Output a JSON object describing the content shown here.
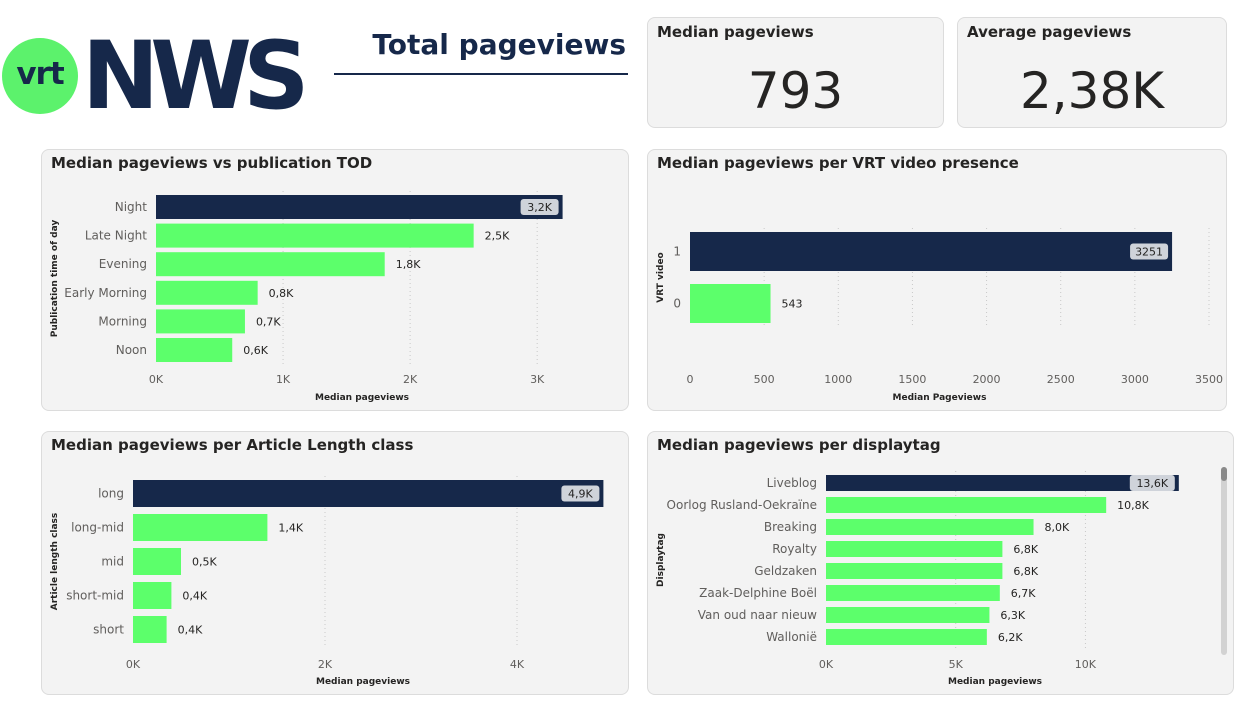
{
  "logo": {
    "vrt": "vrt",
    "nws": "NWS"
  },
  "page_title": "Total pageviews",
  "kpis": [
    {
      "label": "Median pageviews",
      "value": "793"
    },
    {
      "label": "Average pageviews",
      "value": "2,38K"
    }
  ],
  "colors": {
    "navy": "#16284a",
    "green": "#5cff6b",
    "label_box": "#cfd3da"
  },
  "chart_data": [
    {
      "type": "bar",
      "orientation": "horizontal",
      "title": "Median pageviews vs publication TOD",
      "xlabel": "Median pageviews",
      "ylabel": "Publication time of day",
      "categories": [
        "Night",
        "Late Night",
        "Evening",
        "Early Morning",
        "Morning",
        "Noon"
      ],
      "values": [
        3200,
        2500,
        1800,
        800,
        700,
        600
      ],
      "data_labels": [
        "3,2K",
        "2,5K",
        "1,8K",
        "0,8K",
        "0,7K",
        "0,6K"
      ],
      "highlight_index": 0,
      "xlim": [
        0,
        3400
      ],
      "ticks": [
        0,
        1000,
        2000,
        3000
      ],
      "tick_labels": [
        "0K",
        "1K",
        "2K",
        "3K"
      ],
      "grid": true
    },
    {
      "type": "bar",
      "orientation": "horizontal",
      "title": "Median pageviews per VRT video presence",
      "xlabel": "Median Pageviews",
      "ylabel": "VRT video",
      "categories": [
        "1",
        "0"
      ],
      "values": [
        3251,
        543
      ],
      "data_labels": [
        "3251",
        "543"
      ],
      "highlight_index": 0,
      "xlim": [
        0,
        3500
      ],
      "ticks": [
        0,
        500,
        1000,
        1500,
        2000,
        2500,
        3000,
        3500
      ],
      "tick_labels": [
        "0",
        "500",
        "1000",
        "1500",
        "2000",
        "2500",
        "3000",
        "3500"
      ],
      "grid": true
    },
    {
      "type": "bar",
      "orientation": "horizontal",
      "title": "Median pageviews per Article Length class",
      "xlabel": "Median pageviews",
      "ylabel": "Article length class",
      "categories": [
        "long",
        "long-mid",
        "mid",
        "short-mid",
        "short"
      ],
      "values": [
        4900,
        1400,
        500,
        400,
        350
      ],
      "data_labels": [
        "4,9K",
        "1,4K",
        "0,5K",
        "0,4K",
        "0,4K"
      ],
      "highlight_index": 0,
      "xlim": [
        0,
        5000
      ],
      "ticks": [
        0,
        2000,
        4000
      ],
      "tick_labels": [
        "0K",
        "2K",
        "4K"
      ],
      "grid": true
    },
    {
      "type": "bar",
      "orientation": "horizontal",
      "title": "Median pageviews per displaytag",
      "xlabel": "Median pageviews",
      "ylabel": "Displaytag",
      "categories": [
        "Liveblog",
        "Oorlog Rusland-Oekraïne",
        "Breaking",
        "Royalty",
        "Geldzaken",
        "Zaak-Delphine Boël",
        "Van oud naar nieuw",
        "Wallonië"
      ],
      "values": [
        13600,
        10800,
        8000,
        6800,
        6800,
        6700,
        6300,
        6200
      ],
      "data_labels": [
        "13,6K",
        "10,8K",
        "8,0K",
        "6,8K",
        "6,8K",
        "6,7K",
        "6,3K",
        "6,2K"
      ],
      "highlight_index": 0,
      "xlim": [
        0,
        13800
      ],
      "ticks": [
        0,
        5000,
        10000
      ],
      "tick_labels": [
        "0K",
        "5K",
        "10K"
      ],
      "grid": true
    }
  ]
}
